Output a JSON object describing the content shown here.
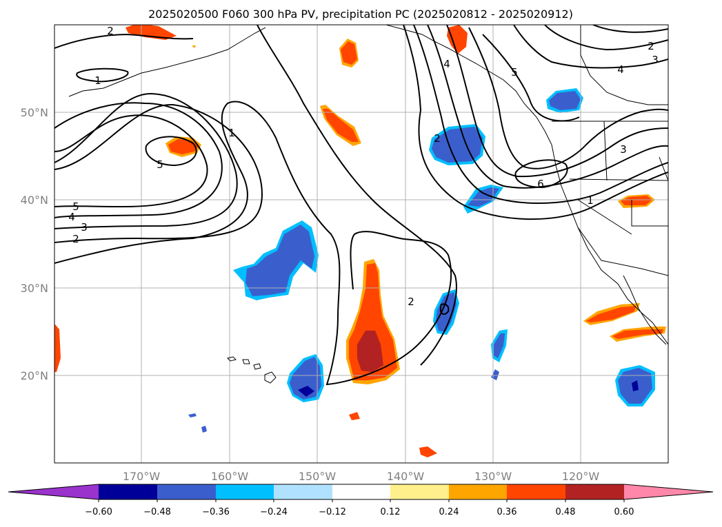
{
  "title": "2025020500 F060 300 hPa PV, precipitation PC (2025020812 - 2025020912)",
  "lon_ticks": [
    "170°W",
    "160°W",
    "150°W",
    "140°W",
    "130°W",
    "120°W"
  ],
  "lat_ticks": [
    "50°N",
    "40°N",
    "30°N",
    "20°N"
  ],
  "contour_labels": [
    {
      "id": "c2a",
      "text": "2"
    },
    {
      "id": "c1a",
      "text": "1"
    },
    {
      "id": "c1b",
      "text": "1"
    },
    {
      "id": "c5a",
      "text": "5"
    },
    {
      "id": "c5b",
      "text": "5"
    },
    {
      "id": "c4a",
      "text": "4"
    },
    {
      "id": "c3a",
      "text": "3"
    },
    {
      "id": "c2b",
      "text": "2"
    },
    {
      "id": "c2c",
      "text": "2"
    },
    {
      "id": "c4b",
      "text": "4"
    },
    {
      "id": "c5c",
      "text": "5"
    },
    {
      "id": "c6a",
      "text": "6"
    },
    {
      "id": "c1c",
      "text": "1"
    },
    {
      "id": "c2d",
      "text": "2"
    },
    {
      "id": "c3b",
      "text": "3"
    },
    {
      "id": "c4c",
      "text": "4"
    },
    {
      "id": "c3c",
      "text": "3"
    },
    {
      "id": "c2e",
      "text": "2"
    }
  ],
  "colorbar": {
    "labels": [
      "−0.60",
      "−0.48",
      "−0.36",
      "−0.24",
      "−0.12",
      "0.12",
      "0.24",
      "0.36",
      "0.48",
      "0.60"
    ],
    "colors": [
      "#9933cc",
      "#000099",
      "#3a5fcd",
      "#00bfff",
      "#b0e2ff",
      "#ffffff",
      "#fff08c",
      "#ffa500",
      "#ff4500",
      "#b22222",
      "#ff88aa"
    ]
  }
}
